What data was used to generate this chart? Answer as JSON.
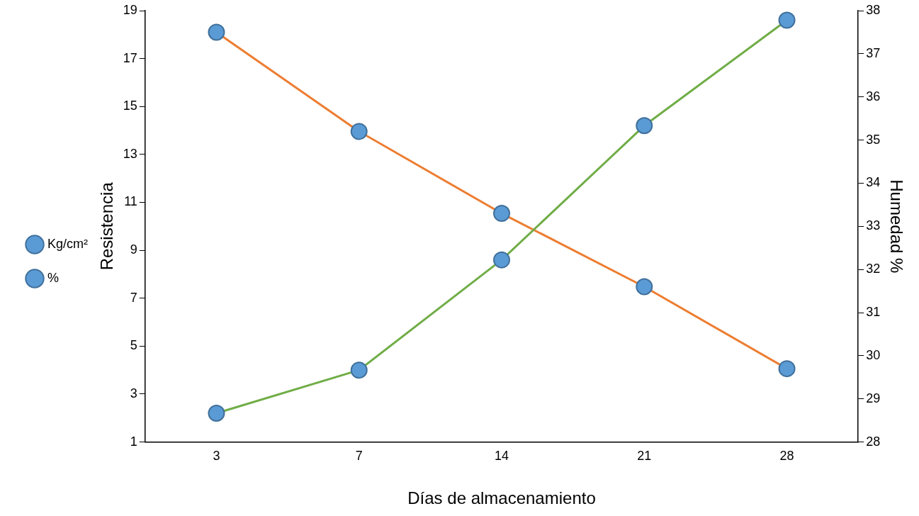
{
  "chart_data": {
    "type": "line",
    "xlabel": "Días de almacenamiento",
    "ylabel": "Resistencia",
    "y2label": "Humedad %",
    "categories": [
      "3",
      "7",
      "14",
      "21",
      "28"
    ],
    "series": [
      {
        "name": "Kg/cm²",
        "color": "#70ad47",
        "values": [
          2.2,
          4.0,
          8.6,
          14.2,
          18.6
        ]
      },
      {
        "name": "%",
        "color": "#ed7d31",
        "axis": "y2",
        "values": [
          37.5,
          35.2,
          33.3,
          31.6,
          29.7
        ]
      }
    ],
    "ylim": [
      1,
      19
    ],
    "yticks": [
      1,
      3,
      5,
      7,
      9,
      11,
      13,
      15,
      17,
      19
    ],
    "y2lim": [
      28,
      38
    ],
    "y2ticks": [
      28,
      29,
      30,
      31,
      32,
      33,
      34,
      35,
      36,
      37,
      38
    ],
    "marker": "circle",
    "line_style": "solid",
    "grid": false,
    "legend": "left"
  }
}
